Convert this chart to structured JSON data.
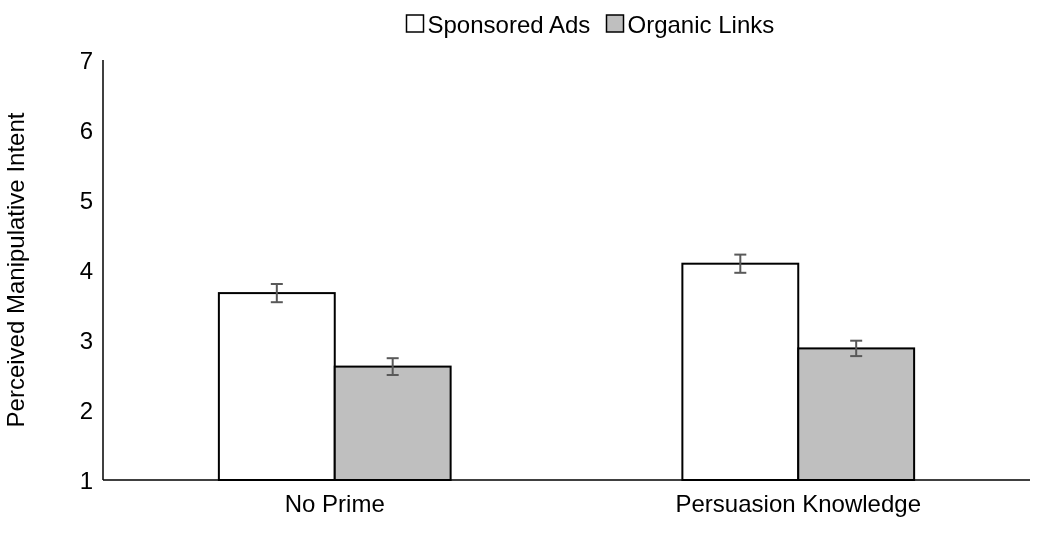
{
  "chart_data": {
    "type": "bar",
    "ylabel": "Perceived Manipulative Intent",
    "categories": [
      "No Prime",
      "Persuasion Knowledge"
    ],
    "series": [
      {
        "name": "Sponsored Ads",
        "color": "#ffffff",
        "values": [
          3.67,
          4.09
        ],
        "errors": [
          0.13,
          0.13
        ]
      },
      {
        "name": "Organic Links",
        "color": "#bfbfbf",
        "values": [
          2.62,
          2.88
        ],
        "errors": [
          0.12,
          0.11
        ]
      }
    ],
    "ylim": [
      1,
      7
    ],
    "yticks": [
      1,
      2,
      3,
      4,
      5,
      6,
      7
    ],
    "legend": "top",
    "grid": false
  }
}
